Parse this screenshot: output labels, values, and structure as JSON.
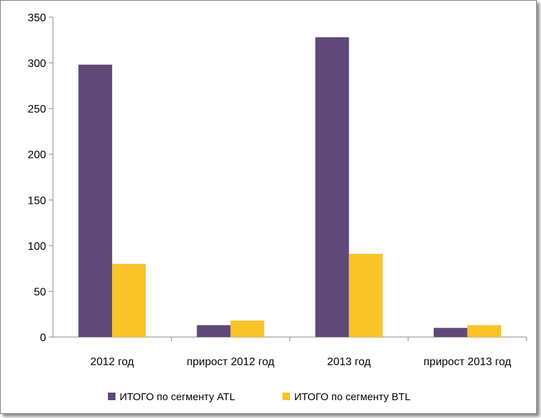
{
  "chart_data": {
    "type": "bar",
    "title": "",
    "xlabel": "",
    "ylabel": "",
    "categories": [
      "2012 год",
      "прирост 2012 год",
      "2013 год",
      "прирост 2013 год"
    ],
    "series": [
      {
        "name": "ИТОГО по сегменту ATL",
        "values": [
          298,
          13,
          328,
          10
        ],
        "color": "#604878"
      },
      {
        "name": "ИТОГО по сегменту BTL",
        "values": [
          80,
          18,
          91,
          13
        ],
        "color": "#f8c428"
      }
    ],
    "ylim": [
      0,
      350
    ],
    "yticks": [
      0,
      50,
      100,
      150,
      200,
      250,
      300,
      350
    ],
    "grid": false,
    "legend_position": "bottom"
  }
}
